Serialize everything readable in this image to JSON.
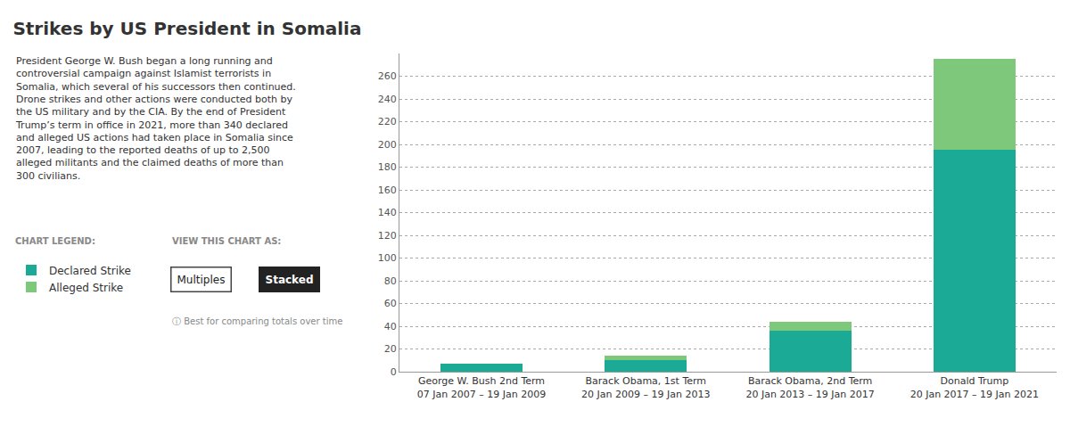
{
  "chart_data": {
    "type": "bar",
    "title": "Strikes by US President in Somalia",
    "subtitle": "President George W. Bush began a long running and\ncontroversial campaign against Islamist terrorists in\nSomalia, which several of his successors then continued.\nDrone strikes and other actions were conducted both by\nthe US military and by the CIA. By the end of President\nTrump’s term in office in 2021, more than 340 declared\nand alleged US actions had taken place in Somalia since\n2007, leading to the reported deaths of up to 2,500\nalleged militants and the claimed deaths of more than\n300 civilians.",
    "categories": [
      "George W. Bush 2nd Term\n07 Jan 2007 – 19 Jan 2009",
      "Barack Obama, 1st Term\n20 Jan 2009 – 19 Jan 2013",
      "Barack Obama, 2nd Term\n20 Jan 2013 – 19 Jan 2017",
      "Donald Trump\n20 Jan 2017 – 19 Jan 2021"
    ],
    "series": [
      {
        "name": "Declared Strike",
        "color": "#1aaa96",
        "values": [
          7,
          10,
          36,
          195
        ]
      },
      {
        "name": "Alleged Strike",
        "color": "#7dc87a",
        "values": [
          0,
          4,
          8,
          80
        ]
      }
    ],
    "stacked": true,
    "ylim": [
      0,
      280
    ],
    "yticks": [
      0,
      20,
      40,
      60,
      80,
      100,
      120,
      140,
      160,
      180,
      200,
      220,
      240,
      260
    ],
    "grid": true,
    "legend": "lower left",
    "annotations": [
      "CHART LEGEND:",
      "VIEW THIS CHART AS:",
      "Multiples",
      "Stacked",
      "ⓘ Best for comparing totals over time"
    ]
  }
}
